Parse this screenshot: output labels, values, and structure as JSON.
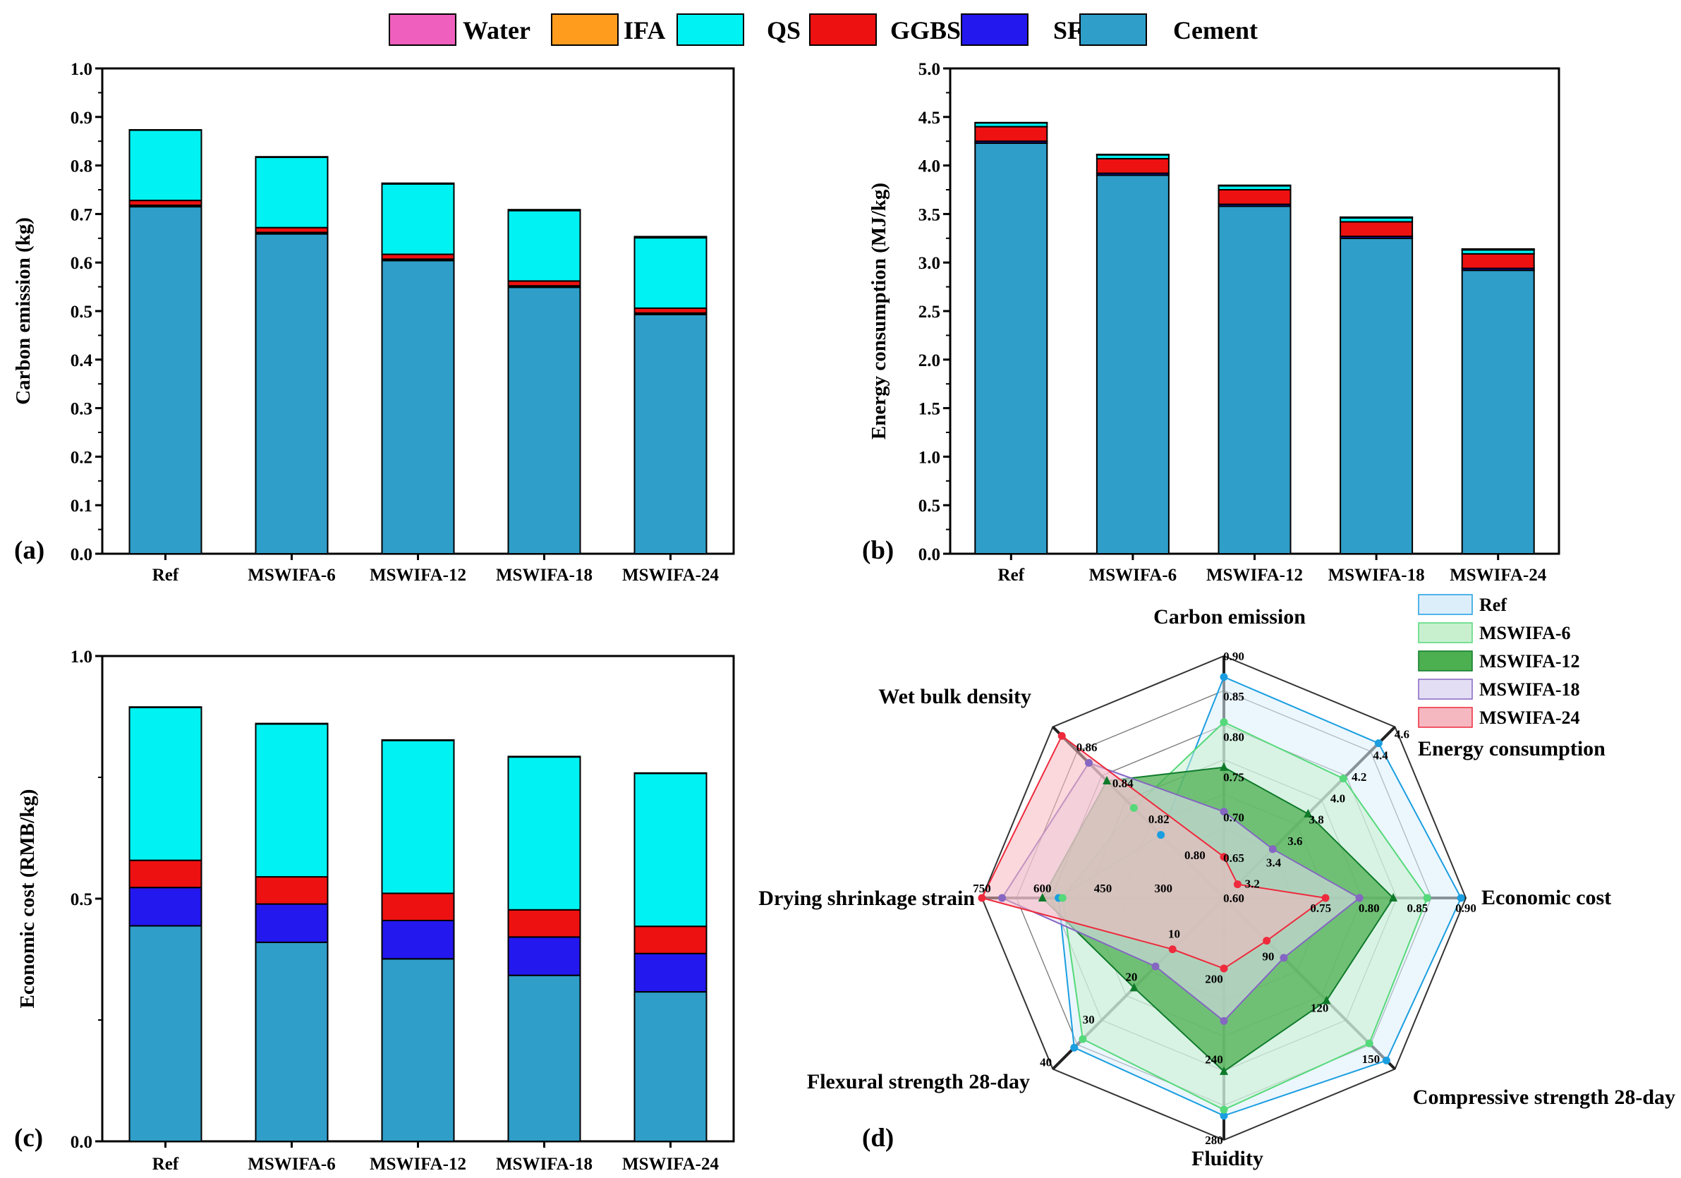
{
  "colors": {
    "Water": "#ef5fbd",
    "IFA": "#ff9c1e",
    "QS": "#00f2f2",
    "GGBS": "#ee1111",
    "SF": "#2318ee",
    "Cement": "#2f9ec9"
  },
  "legend": [
    {
      "key": "Water",
      "label": "Water"
    },
    {
      "key": "IFA",
      "label": "IFA"
    },
    {
      "key": "QS",
      "label": "QS"
    },
    {
      "key": "GGBS",
      "label": "GGBS"
    },
    {
      "key": "SF",
      "label": "SF"
    },
    {
      "key": "Cement",
      "label": "Cement"
    }
  ],
  "panel_labels": [
    "(a)",
    "(b)",
    "(c)",
    "(d)"
  ],
  "chart_data": [
    {
      "id": "a",
      "type": "bar",
      "stacked": true,
      "panel_label": "(a)",
      "ylabel": "Carbon emission (kg)",
      "ylim": [
        0,
        1.0
      ],
      "yticks": [
        "0.0",
        "0.1",
        "0.2",
        "0.3",
        "0.4",
        "0.5",
        "0.6",
        "0.7",
        "0.8",
        "0.9",
        "1.0"
      ],
      "categories": [
        "Ref",
        "MSWIFA-6",
        "MSWIFA-12",
        "MSWIFA-18",
        "MSWIFA-24"
      ],
      "series": [
        {
          "name": "Cement",
          "values": [
            0.715,
            0.659,
            0.604,
            0.549,
            0.493
          ]
        },
        {
          "name": "SF",
          "values": [
            0.003,
            0.003,
            0.003,
            0.003,
            0.003
          ]
        },
        {
          "name": "GGBS",
          "values": [
            0.01,
            0.01,
            0.01,
            0.01,
            0.01
          ]
        },
        {
          "name": "QS",
          "values": [
            0.145,
            0.145,
            0.145,
            0.145,
            0.145
          ]
        },
        {
          "name": "IFA",
          "values": [
            0.0,
            0.0005,
            0.001,
            0.0015,
            0.002
          ]
        },
        {
          "name": "Water",
          "values": [
            0.0005,
            0.0005,
            0.0005,
            0.0005,
            0.0005
          ]
        }
      ]
    },
    {
      "id": "b",
      "type": "bar",
      "stacked": true,
      "panel_label": "(b)",
      "ylabel": "Energy consumption (MJ/kg)",
      "ylim": [
        0,
        5.0
      ],
      "yticks": [
        "0.0",
        "0.5",
        "1.0",
        "1.5",
        "2.0",
        "2.5",
        "3.0",
        "3.5",
        "4.0",
        "4.5",
        "5.0"
      ],
      "categories": [
        "Ref",
        "MSWIFA-6",
        "MSWIFA-12",
        "MSWIFA-18",
        "MSWIFA-24"
      ],
      "series": [
        {
          "name": "Cement",
          "values": [
            4.23,
            3.9,
            3.58,
            3.25,
            2.92
          ]
        },
        {
          "name": "SF",
          "values": [
            0.02,
            0.02,
            0.02,
            0.02,
            0.02
          ]
        },
        {
          "name": "GGBS",
          "values": [
            0.15,
            0.15,
            0.15,
            0.15,
            0.15
          ]
        },
        {
          "name": "QS",
          "values": [
            0.04,
            0.04,
            0.04,
            0.04,
            0.04
          ]
        },
        {
          "name": "IFA",
          "values": [
            0.0,
            0.002,
            0.004,
            0.006,
            0.008
          ]
        },
        {
          "name": "Water",
          "values": [
            0.002,
            0.002,
            0.002,
            0.002,
            0.002
          ]
        }
      ]
    },
    {
      "id": "c",
      "type": "bar",
      "stacked": true,
      "panel_label": "(c)",
      "ylabel": "Economic cost (RMB/kg)",
      "ylim": [
        0,
        1.0
      ],
      "yticks": [
        "0.0",
        "0.5",
        "1.0"
      ],
      "categories": [
        "Ref",
        "MSWIFA-6",
        "MSWIFA-12",
        "MSWIFA-18",
        "MSWIFA-24"
      ],
      "series": [
        {
          "name": "Cement",
          "values": [
            0.444,
            0.41,
            0.376,
            0.342,
            0.308
          ]
        },
        {
          "name": "SF",
          "values": [
            0.079,
            0.079,
            0.079,
            0.079,
            0.079
          ]
        },
        {
          "name": "GGBS",
          "values": [
            0.056,
            0.056,
            0.056,
            0.056,
            0.056
          ]
        },
        {
          "name": "QS",
          "values": [
            0.315,
            0.315,
            0.315,
            0.315,
            0.315
          ]
        },
        {
          "name": "IFA",
          "values": [
            0.0,
            0.0,
            0.0,
            0.0,
            0.0
          ]
        },
        {
          "name": "Water",
          "values": [
            0.001,
            0.001,
            0.001,
            0.001,
            0.001
          ]
        }
      ]
    },
    {
      "id": "d",
      "type": "radar",
      "panel_label": "(d)",
      "axes": [
        {
          "label": "Carbon emission",
          "min": 0.6,
          "max": 0.9,
          "ticks": [
            "0.60",
            "0.65",
            "0.70",
            "0.75",
            "0.80",
            "0.85",
            "0.90"
          ]
        },
        {
          "label": "Energy consumption",
          "min": 3.0,
          "max": 4.6,
          "ticks": [
            "3.2",
            "3.4",
            "3.6",
            "3.8",
            "4.0",
            "4.2",
            "4.4",
            "4.6"
          ]
        },
        {
          "label": "Economic cost",
          "min": 0.65,
          "max": 0.9,
          "ticks": [
            "0.75",
            "0.80",
            "0.85",
            "0.90"
          ]
        },
        {
          "label": "Compressive strength 28-day",
          "min": 60,
          "max": 160,
          "ticks": [
            "90",
            "120",
            "150"
          ]
        },
        {
          "label": "Fluidity",
          "min": 160,
          "max": 280,
          "ticks": [
            "200",
            "240",
            "280"
          ]
        },
        {
          "label": "Flexural strength 28-day",
          "min": 0,
          "max": 40,
          "ticks": [
            "10",
            "20",
            "30",
            "40"
          ]
        },
        {
          "label": "Drying shrinkage strain",
          "min": 150,
          "max": 750,
          "ticks": [
            "300",
            "450",
            "600",
            "750"
          ]
        },
        {
          "label": "Wet bulk density",
          "min": 0.78,
          "max": 0.875,
          "ticks": [
            "0.80",
            "0.82",
            "0.84",
            "0.86"
          ]
        }
      ],
      "series": [
        {
          "name": "Ref",
          "color": "#1a9ee0",
          "fill": "#ddeefb",
          "values": [
            0.874,
            4.447,
            0.895,
            155,
            268,
            35,
            560,
            0.815
          ]
        },
        {
          "name": "MSWIFA-6",
          "color": "#55d97a",
          "fill": "#c8f0cf",
          "values": [
            0.818,
            4.117,
            0.86,
            145,
            265,
            33,
            550,
            0.83
          ]
        },
        {
          "name": "MSWIFA-12",
          "color": "#0f7a2a",
          "fill": "#4caf50",
          "values": [
            0.762,
            3.787,
            0.825,
            120,
            246,
            21,
            600,
            0.845
          ]
        },
        {
          "name": "MSWIFA-18",
          "color": "#8566c2",
          "fill": "#e4def5",
          "values": [
            0.707,
            3.457,
            0.79,
            95,
            221,
            16,
            700,
            0.855
          ]
        },
        {
          "name": "MSWIFA-24",
          "color": "#ee2a3c",
          "fill": "#f5b8c0",
          "values": [
            0.651,
            3.128,
            0.755,
            85,
            195,
            12,
            750,
            0.87
          ]
        }
      ]
    }
  ]
}
